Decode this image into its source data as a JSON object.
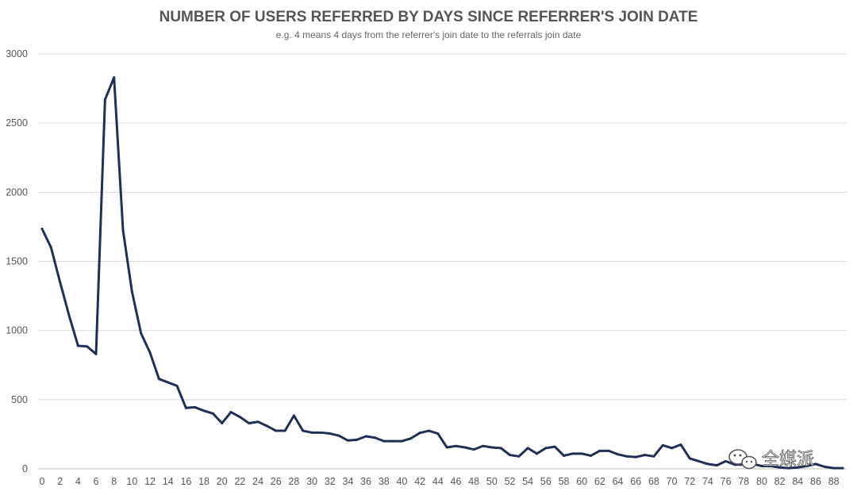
{
  "watermark": {
    "text": "全媒派"
  },
  "chart_data": {
    "type": "line",
    "title": "NUMBER OF USERS REFERRED BY DAYS SINCE REFERRER'S JOIN DATE",
    "subtitle": "e.g. 4 means 4 days from the referrer's join date to the referrals join date",
    "xlabel": "",
    "ylabel": "",
    "xlim": [
      0,
      89
    ],
    "ylim": [
      0,
      3000
    ],
    "y_ticks": [
      0,
      500,
      1000,
      1500,
      2000,
      2500,
      3000
    ],
    "x_ticks": [
      0,
      2,
      4,
      6,
      8,
      10,
      12,
      14,
      16,
      18,
      20,
      22,
      24,
      26,
      28,
      30,
      32,
      34,
      36,
      38,
      40,
      42,
      44,
      46,
      48,
      50,
      52,
      54,
      56,
      58,
      60,
      62,
      64,
      66,
      68,
      70,
      72,
      74,
      76,
      78,
      80,
      82,
      84,
      86,
      88
    ],
    "grid": true,
    "line_color": "#1f3057",
    "x": [
      0,
      1,
      2,
      3,
      4,
      5,
      6,
      7,
      8,
      9,
      10,
      11,
      12,
      13,
      14,
      15,
      16,
      17,
      18,
      19,
      20,
      21,
      22,
      23,
      24,
      25,
      26,
      27,
      28,
      29,
      30,
      31,
      32,
      33,
      34,
      35,
      36,
      37,
      38,
      39,
      40,
      41,
      42,
      43,
      44,
      45,
      46,
      47,
      48,
      49,
      50,
      51,
      52,
      53,
      54,
      55,
      56,
      57,
      58,
      59,
      60,
      61,
      62,
      63,
      64,
      65,
      66,
      67,
      68,
      69,
      70,
      71,
      72,
      73,
      74,
      75,
      76,
      77,
      78,
      79,
      80,
      81,
      82,
      83,
      84,
      85,
      86,
      87,
      88,
      89
    ],
    "y": [
      1735,
      1600,
      1350,
      1110,
      890,
      885,
      830,
      2670,
      2830,
      1725,
      1280,
      980,
      840,
      650,
      625,
      600,
      440,
      445,
      420,
      400,
      330,
      410,
      375,
      330,
      340,
      310,
      275,
      275,
      385,
      275,
      262,
      262,
      255,
      240,
      205,
      210,
      235,
      225,
      200,
      200,
      200,
      220,
      260,
      275,
      255,
      155,
      165,
      155,
      140,
      165,
      155,
      150,
      100,
      90,
      150,
      110,
      150,
      160,
      95,
      110,
      110,
      95,
      130,
      130,
      105,
      90,
      85,
      100,
      90,
      170,
      150,
      175,
      75,
      55,
      35,
      25,
      55,
      30,
      30,
      35,
      20,
      20,
      10,
      5,
      10,
      20,
      35,
      15,
      5,
      5
    ]
  }
}
